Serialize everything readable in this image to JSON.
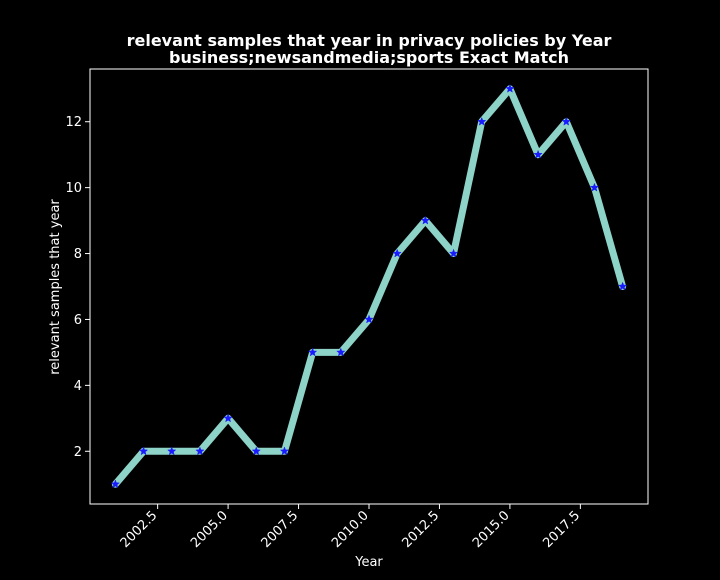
{
  "chart_data": {
    "type": "line",
    "title": "relevant samples that year in privacy policies by Year",
    "subtitle": "business;newsandmedia;sports Exact Match",
    "xlabel": "Year",
    "ylabel": "relevant samples that year",
    "x": [
      2001,
      2002,
      2003,
      2004,
      2005,
      2006,
      2007,
      2008,
      2009,
      2010,
      2011,
      2012,
      2013,
      2014,
      2015,
      2016,
      2017,
      2018,
      2019
    ],
    "y": [
      1,
      2,
      2,
      2,
      3,
      2,
      2,
      5,
      5,
      6,
      8,
      9,
      8,
      12,
      13,
      11,
      12,
      10,
      7
    ],
    "xlim": [
      2000.1,
      2019.9
    ],
    "ylim": [
      0.4,
      13.6
    ],
    "xticks": [
      2002.5,
      2005.0,
      2007.5,
      2010.0,
      2012.5,
      2015.0,
      2017.5
    ],
    "xtick_labels": [
      "2002.5",
      "2005.0",
      "2007.5",
      "2010.0",
      "2012.5",
      "2015.0",
      "2017.5"
    ],
    "yticks": [
      2,
      4,
      6,
      8,
      10,
      12
    ],
    "ytick_labels": [
      "2",
      "4",
      "6",
      "8",
      "10",
      "12"
    ],
    "grid": false,
    "legend": false,
    "colors": {
      "background": "#000000",
      "line": "#8dd3c7",
      "marker": "#1a1aff",
      "axis": "#ffffff",
      "text": "#ffffff"
    }
  }
}
